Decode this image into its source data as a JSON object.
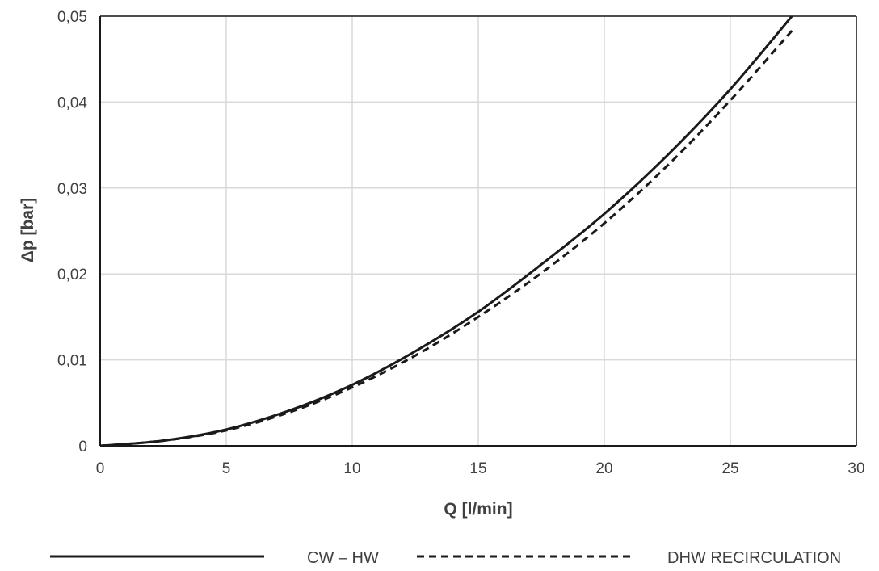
{
  "chart_data": {
    "type": "line",
    "title": "",
    "xlabel": "Q [l/min]",
    "ylabel": "Δp [bar]",
    "xlim": [
      0,
      30
    ],
    "ylim": [
      0,
      0.05
    ],
    "x_ticks": [
      0,
      5,
      10,
      15,
      20,
      25,
      30
    ],
    "x_tick_labels": [
      "0",
      "5",
      "10",
      "15",
      "20",
      "25",
      "30"
    ],
    "y_ticks": [
      0,
      0.01,
      0.02,
      0.03,
      0.04,
      0.05
    ],
    "y_tick_labels": [
      "0",
      "0,01",
      "0,02",
      "0,03",
      "0,04",
      "0,05"
    ],
    "grid": true,
    "legend_position": "bottom",
    "colors": {
      "line": "#1a1a1a",
      "grid": "#d9d9d9",
      "axis": "#1a1a1a",
      "text": "#404040"
    },
    "series": [
      {
        "name": "CW – HW",
        "style": "solid",
        "x": [
          0,
          2.5,
          5,
          7.5,
          10,
          12.5,
          15,
          17.5,
          20,
          22.5,
          25,
          27.5
        ],
        "y": [
          0,
          0.0006,
          0.0019,
          0.0041,
          0.0071,
          0.011,
          0.0156,
          0.0211,
          0.027,
          0.0338,
          0.0415,
          0.0502
        ]
      },
      {
        "name": "DHW RECIRCULATION",
        "style": "dashed",
        "x": [
          0,
          2.5,
          5,
          7.5,
          10,
          12.5,
          15,
          17.5,
          20,
          22.5,
          25,
          27.5
        ],
        "y": [
          0,
          0.0006,
          0.0018,
          0.0039,
          0.0068,
          0.0105,
          0.015,
          0.0201,
          0.0259,
          0.0326,
          0.0402,
          0.0485
        ]
      }
    ]
  }
}
